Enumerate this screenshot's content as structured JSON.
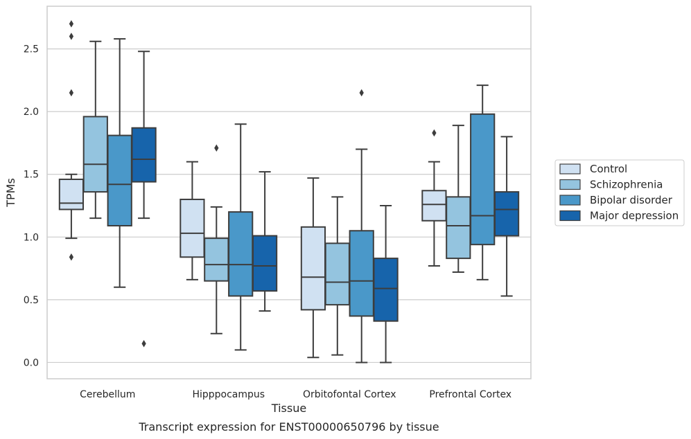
{
  "chart_data": {
    "type": "boxplot",
    "title": "",
    "caption": "Transcript expression for ENST00000650796 by tissue",
    "xlabel": "Tissue",
    "ylabel": "TPMs",
    "ylim": [
      -0.13,
      2.84
    ],
    "yticks": [
      0.0,
      0.5,
      1.0,
      1.5,
      2.0,
      2.5
    ],
    "ytick_labels": [
      "0.0",
      "0.5",
      "1.0",
      "1.5",
      "2.0",
      "2.5"
    ],
    "grid": "horizontal",
    "legend_position": "right",
    "categories": [
      "Cerebellum",
      "Hipppocampus",
      "Orbitofontal Cortex",
      "Prefrontal Cortex"
    ],
    "series": [
      {
        "name": "Control",
        "color": "#d0e1f2",
        "boxes": [
          {
            "whisker_low": 0.99,
            "q1": 1.22,
            "median": 1.27,
            "q3": 1.46,
            "whisker_high": 1.5,
            "outliers": [
              0.84
            ]
          },
          {
            "whisker_low": 0.66,
            "q1": 0.84,
            "median": 1.03,
            "q3": 1.3,
            "whisker_high": 1.6,
            "outliers": []
          },
          {
            "whisker_low": 0.04,
            "q1": 0.42,
            "median": 0.68,
            "q3": 1.08,
            "whisker_high": 1.47,
            "outliers": []
          },
          {
            "whisker_low": 0.77,
            "q1": 1.13,
            "median": 1.26,
            "q3": 1.37,
            "whisker_high": 1.6,
            "outliers": [
              1.83
            ]
          }
        ]
      },
      {
        "name": "Schizophrenia",
        "color": "#94c4df",
        "boxes": [
          {
            "whisker_low": 1.15,
            "q1": 1.36,
            "median": 1.58,
            "q3": 1.96,
            "whisker_high": 2.56,
            "outliers": []
          },
          {
            "whisker_low": 0.23,
            "q1": 0.65,
            "median": 0.78,
            "q3": 0.99,
            "whisker_high": 1.24,
            "outliers": [
              1.71
            ]
          },
          {
            "whisker_low": 0.06,
            "q1": 0.46,
            "median": 0.64,
            "q3": 0.95,
            "whisker_high": 1.32,
            "outliers": []
          },
          {
            "whisker_low": 0.72,
            "q1": 0.83,
            "median": 1.09,
            "q3": 1.32,
            "whisker_high": 1.89,
            "outliers": []
          }
        ]
      },
      {
        "name": "Bipolar disorder",
        "color": "#4a98c9",
        "boxes": [
          {
            "whisker_low": 0.6,
            "q1": 1.09,
            "median": 1.42,
            "q3": 1.81,
            "whisker_high": 2.58,
            "outliers": []
          },
          {
            "whisker_low": 0.1,
            "q1": 0.53,
            "median": 0.78,
            "q3": 1.2,
            "whisker_high": 1.9,
            "outliers": []
          },
          {
            "whisker_low": 0.0,
            "q1": 0.37,
            "median": 0.65,
            "q3": 1.05,
            "whisker_high": 1.7,
            "outliers": [
              2.15
            ]
          },
          {
            "whisker_low": 0.66,
            "q1": 0.94,
            "median": 1.17,
            "q3": 1.98,
            "whisker_high": 2.21,
            "outliers": []
          }
        ]
      },
      {
        "name": "Major depression",
        "color": "#1764ab",
        "boxes": [
          {
            "whisker_low": 1.15,
            "q1": 1.44,
            "median": 1.62,
            "q3": 1.87,
            "whisker_high": 2.48,
            "outliers": [
              0.15
            ]
          },
          {
            "whisker_low": 0.41,
            "q1": 0.57,
            "median": 0.77,
            "q3": 1.01,
            "whisker_high": 1.52,
            "outliers": []
          },
          {
            "whisker_low": 0.0,
            "q1": 0.33,
            "median": 0.59,
            "q3": 0.83,
            "whisker_high": 1.25,
            "outliers": []
          },
          {
            "whisker_low": 0.53,
            "q1": 1.01,
            "median": 1.22,
            "q3": 1.36,
            "whisker_high": 1.8,
            "outliers": []
          }
        ]
      }
    ],
    "extra_outliers": [
      {
        "category": "Cerebellum",
        "series": "Control",
        "values": [
          2.15,
          2.6,
          2.7
        ]
      }
    ],
    "colors": {
      "grid": "#cccccc",
      "frame": "#cccccc",
      "box_edge": "#3d3d3d"
    }
  }
}
